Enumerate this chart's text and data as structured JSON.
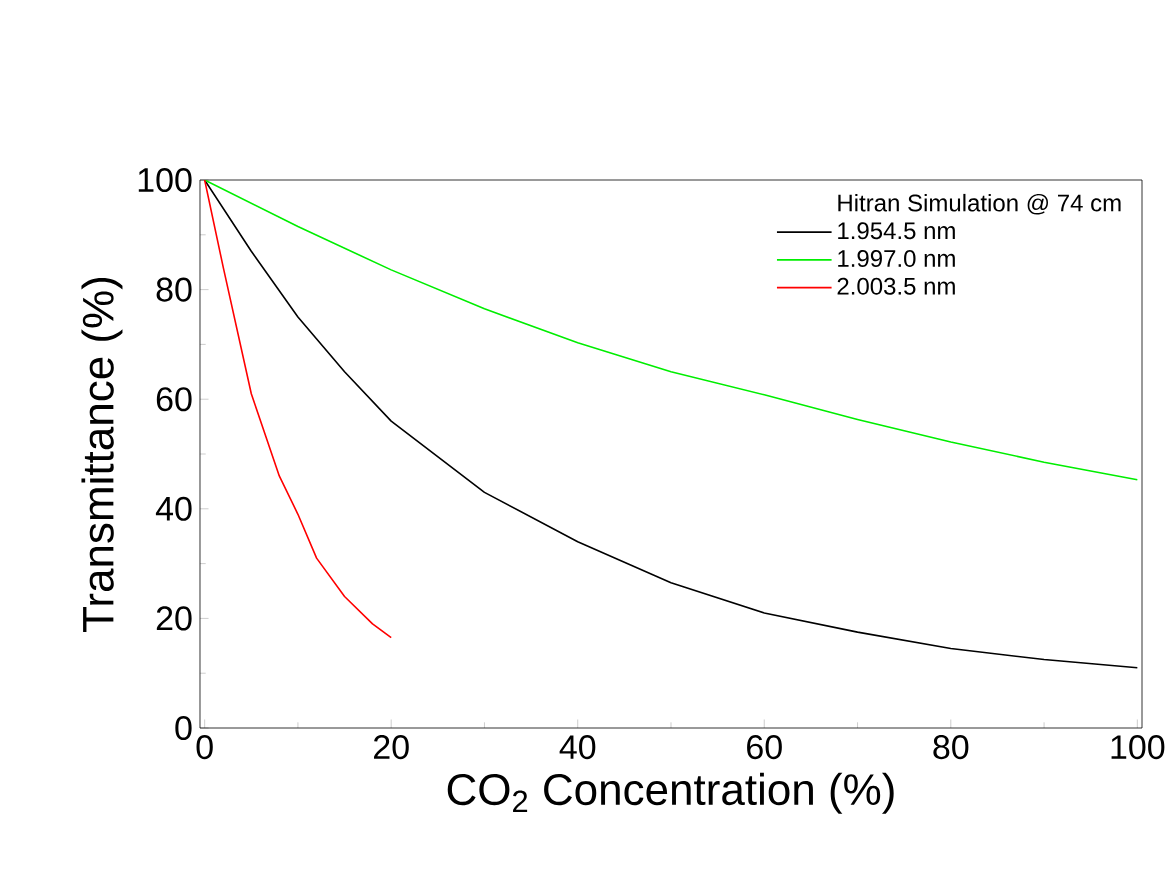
{
  "chart_data": {
    "type": "line",
    "xlabel": "CO$_{2}$ Concentration (%)",
    "ylabel": "Transmittance (%)",
    "legend_title": "Hitran Simulation @ 74 cm",
    "legend": "top right",
    "xlim": [
      -0.5,
      100.5
    ],
    "ylim": [
      0,
      100
    ],
    "xticks": [
      0,
      20,
      40,
      60,
      80,
      100
    ],
    "yticks": [
      0,
      20,
      40,
      60,
      80,
      100
    ],
    "grid": false,
    "line_style": "solid",
    "marker": "none",
    "series": [
      {
        "name": "1.954.5 nm",
        "color": "#000000",
        "x": [
          0,
          5,
          10,
          15,
          20,
          30,
          40,
          50,
          60,
          70,
          80,
          90,
          100
        ],
        "values": [
          100,
          87,
          75,
          65,
          56,
          43,
          34,
          26.5,
          21,
          17.5,
          14.5,
          12.5,
          11
        ]
      },
      {
        "name": "1.997.0 nm",
        "color": "#00ee00",
        "x": [
          0,
          10,
          20,
          30,
          40,
          50,
          60,
          70,
          80,
          90,
          100
        ],
        "values": [
          100,
          91.5,
          83.6,
          76.5,
          70.3,
          65,
          60.8,
          56.3,
          52.2,
          48.5,
          45.3
        ]
      },
      {
        "name": "2.003.5 nm",
        "color": "#ff0000",
        "x": [
          0,
          2,
          5,
          8,
          10,
          12,
          15,
          18,
          20
        ],
        "values": [
          100,
          84,
          61,
          46,
          39,
          31,
          24,
          19,
          16.5
        ]
      }
    ]
  }
}
